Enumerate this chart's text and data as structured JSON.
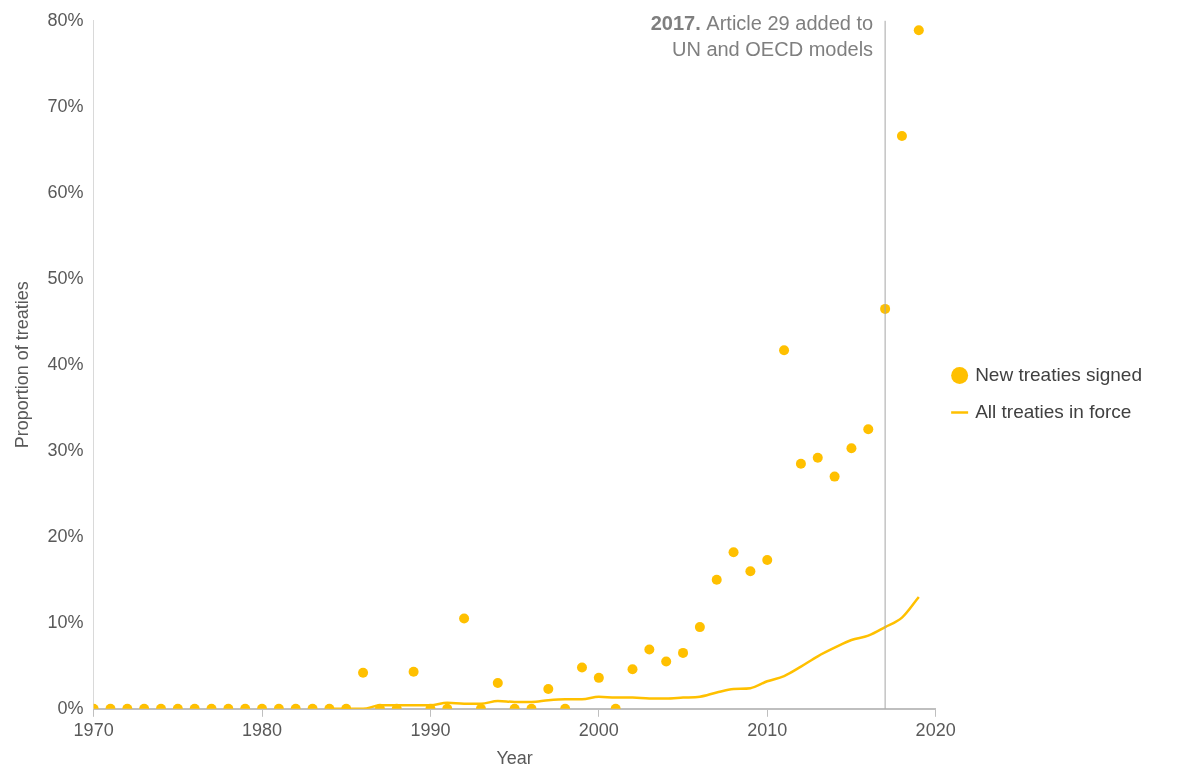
{
  "chart_data": {
    "type": "scatter",
    "xlabel": "Year",
    "ylabel": "Proportion of treaties",
    "xlim": [
      1970,
      2020
    ],
    "xticks": [
      1970,
      1980,
      1990,
      2000,
      2010,
      2020
    ],
    "ylim": [
      0,
      80
    ],
    "yticks": [
      {
        "value": 0,
        "label": "0%"
      },
      {
        "value": 10,
        "label": "10%"
      },
      {
        "value": 20,
        "label": "20%"
      },
      {
        "value": 30,
        "label": "30%"
      },
      {
        "value": 40,
        "label": "40%"
      },
      {
        "value": 50,
        "label": "50%"
      },
      {
        "value": 60,
        "label": "60%"
      },
      {
        "value": 70,
        "label": "70%"
      },
      {
        "value": 80,
        "label": "80%"
      }
    ],
    "grid": false,
    "legend": "right",
    "marker": "circle",
    "series": [
      {
        "name": "New treaties signed",
        "color": "#ffc000",
        "x": [
          1970,
          1971,
          1972,
          1973,
          1974,
          1975,
          1976,
          1977,
          1978,
          1979,
          1980,
          1981,
          1982,
          1983,
          1984,
          1985,
          1986,
          1987,
          1988,
          1989,
          1990,
          1991,
          1992,
          1993,
          1994,
          1995,
          1996,
          1997,
          1998,
          1999,
          2000,
          2001,
          2002,
          2003,
          2004,
          2005,
          2006,
          2007,
          2008,
          2009,
          2010,
          2011,
          2012,
          2013,
          2014,
          2015,
          2016,
          2017,
          2018,
          2019
        ],
        "values": [
          0,
          0,
          0,
          0,
          0,
          0,
          0,
          0,
          0,
          0,
          0,
          0,
          0,
          0,
          0,
          0,
          4.2,
          0,
          0,
          4.3,
          0,
          0,
          10.5,
          0,
          3.0,
          0,
          0,
          2.3,
          0,
          4.8,
          3.6,
          0,
          4.6,
          6.9,
          5.5,
          6.5,
          9.5,
          15.0,
          18.2,
          16.0,
          17.3,
          41.7,
          28.5,
          29.2,
          27.0,
          30.3,
          32.5,
          46.5,
          66.6,
          78.9
        ]
      },
      {
        "name": "All treaties in force",
        "type": "line",
        "color": "#ffc000",
        "marker": "none",
        "x": [
          1984,
          1985,
          1986,
          1987,
          1988,
          1989,
          1990,
          1991,
          1992,
          1993,
          1994,
          1995,
          1996,
          1997,
          1998,
          1999,
          2000,
          2001,
          2002,
          2003,
          2004,
          2005,
          2006,
          2007,
          2008,
          2009,
          2010,
          2011,
          2012,
          2013,
          2014,
          2015,
          2016,
          2017,
          2018,
          2019
        ],
        "values": [
          0,
          0,
          0,
          0.4,
          0.4,
          0.4,
          0.4,
          0.7,
          0.6,
          0.6,
          0.9,
          0.8,
          0.8,
          1.0,
          1.1,
          1.1,
          1.4,
          1.3,
          1.3,
          1.2,
          1.2,
          1.3,
          1.4,
          1.9,
          2.3,
          2.4,
          3.2,
          3.8,
          4.9,
          6.1,
          7.1,
          8.0,
          8.5,
          9.5,
          10.6,
          13.0
        ]
      }
    ],
    "ref_lines": [
      {
        "axis": "x",
        "value": 2017,
        "label": "2017. Article 29 added to UN and OECD models",
        "color": "#a6a6a6"
      }
    ]
  }
}
